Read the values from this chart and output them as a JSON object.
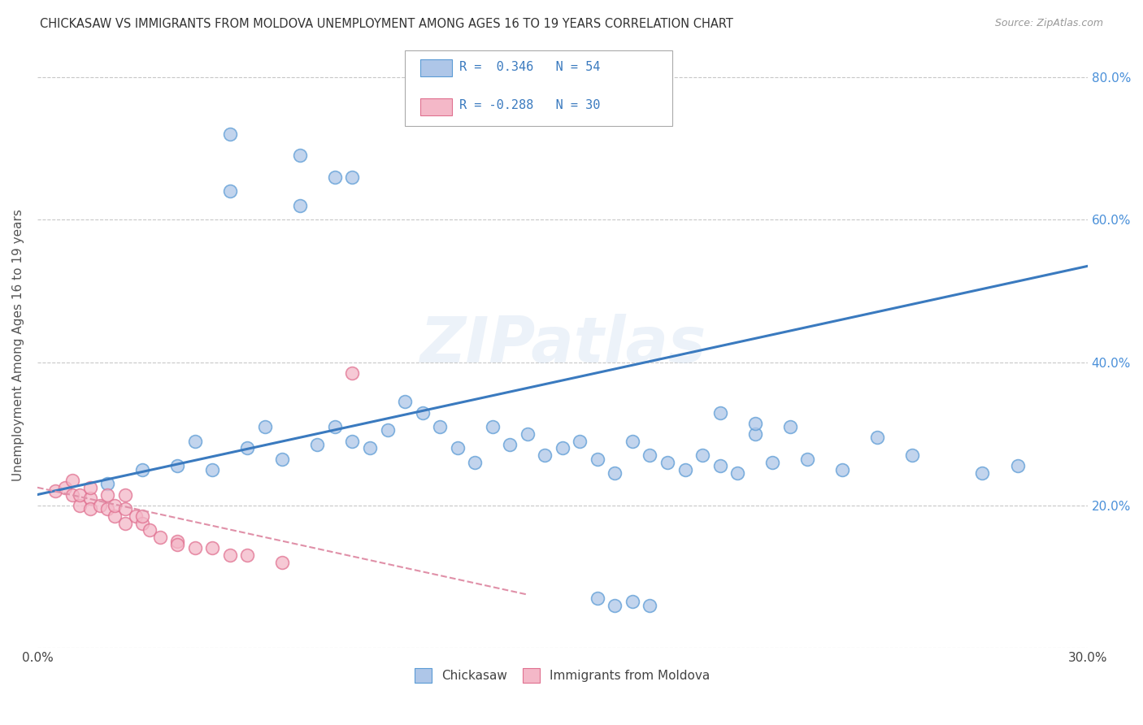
{
  "title": "CHICKASAW VS IMMIGRANTS FROM MOLDOVA UNEMPLOYMENT AMONG AGES 16 TO 19 YEARS CORRELATION CHART",
  "source": "Source: ZipAtlas.com",
  "ylabel": "Unemployment Among Ages 16 to 19 years",
  "xlim": [
    0.0,
    0.3
  ],
  "ylim": [
    0.0,
    0.85
  ],
  "y_ticks": [
    0.0,
    0.2,
    0.4,
    0.6,
    0.8
  ],
  "y_tick_labels": [
    "",
    "20.0%",
    "40.0%",
    "60.0%",
    "80.0%"
  ],
  "grid_color": "#c8c8c8",
  "background_color": "#ffffff",
  "watermark": "ZIPatlas",
  "chickasaw_color": "#aec6e8",
  "chickasaw_edge": "#5b9bd5",
  "moldova_color": "#f4b8c8",
  "moldova_edge": "#e07090",
  "line_blue": "#3a7abf",
  "line_pink": "#e090a8",
  "chickasaw_x": [
    0.055,
    0.075,
    0.085,
    0.09,
    0.055,
    0.075,
    0.02,
    0.03,
    0.04,
    0.045,
    0.05,
    0.06,
    0.065,
    0.07,
    0.08,
    0.085,
    0.09,
    0.095,
    0.1,
    0.105,
    0.11,
    0.115,
    0.12,
    0.125,
    0.13,
    0.135,
    0.14,
    0.145,
    0.15,
    0.155,
    0.16,
    0.165,
    0.17,
    0.175,
    0.18,
    0.185,
    0.19,
    0.195,
    0.2,
    0.205,
    0.21,
    0.215,
    0.22,
    0.23,
    0.24,
    0.25,
    0.195,
    0.205,
    0.27,
    0.28,
    0.16,
    0.165,
    0.17,
    0.175
  ],
  "chickasaw_y": [
    0.72,
    0.69,
    0.66,
    0.66,
    0.64,
    0.62,
    0.23,
    0.25,
    0.255,
    0.29,
    0.25,
    0.28,
    0.31,
    0.265,
    0.285,
    0.31,
    0.29,
    0.28,
    0.305,
    0.345,
    0.33,
    0.31,
    0.28,
    0.26,
    0.31,
    0.285,
    0.3,
    0.27,
    0.28,
    0.29,
    0.265,
    0.245,
    0.29,
    0.27,
    0.26,
    0.25,
    0.27,
    0.255,
    0.245,
    0.3,
    0.26,
    0.31,
    0.265,
    0.25,
    0.295,
    0.27,
    0.33,
    0.315,
    0.245,
    0.255,
    0.07,
    0.06,
    0.065,
    0.06
  ],
  "moldova_x": [
    0.005,
    0.008,
    0.01,
    0.01,
    0.012,
    0.012,
    0.015,
    0.015,
    0.015,
    0.018,
    0.02,
    0.02,
    0.022,
    0.022,
    0.025,
    0.025,
    0.025,
    0.028,
    0.03,
    0.03,
    0.032,
    0.035,
    0.04,
    0.04,
    0.045,
    0.05,
    0.055,
    0.06,
    0.07,
    0.09
  ],
  "moldova_y": [
    0.22,
    0.225,
    0.215,
    0.235,
    0.2,
    0.215,
    0.21,
    0.195,
    0.225,
    0.2,
    0.195,
    0.215,
    0.185,
    0.2,
    0.215,
    0.195,
    0.175,
    0.185,
    0.175,
    0.185,
    0.165,
    0.155,
    0.15,
    0.145,
    0.14,
    0.14,
    0.13,
    0.13,
    0.12,
    0.385
  ],
  "chick_line_x0": 0.0,
  "chick_line_y0": 0.215,
  "chick_line_x1": 0.3,
  "chick_line_y1": 0.535,
  "mold_line_x0": 0.0,
  "mold_line_y0": 0.225,
  "mold_line_x1": 0.14,
  "mold_line_y1": 0.075
}
